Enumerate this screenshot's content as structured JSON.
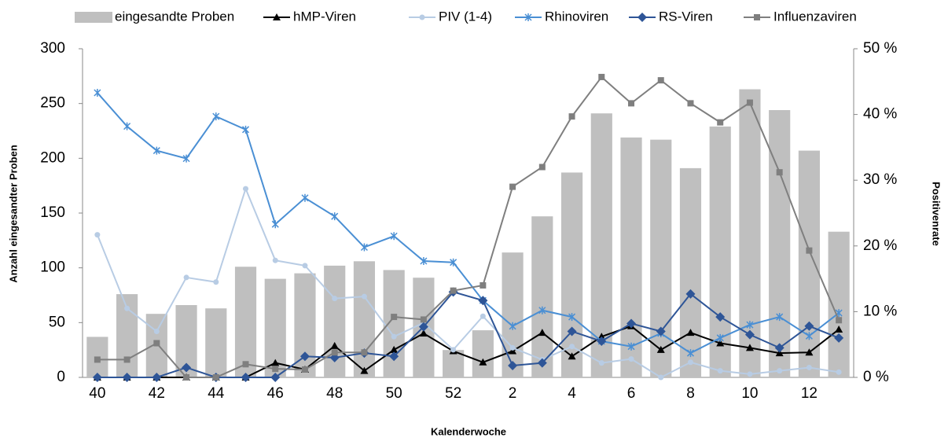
{
  "chart_data": {
    "type": "combo",
    "xlabel": "Kalenderwoche",
    "ylabel": "Anzahl eingesandter Proben",
    "y2label": "Positivenrate",
    "categories": [
      40,
      null,
      42,
      null,
      44,
      null,
      46,
      null,
      48,
      null,
      50,
      null,
      52,
      null,
      2,
      null,
      4,
      null,
      6,
      null,
      8,
      null,
      10,
      null,
      12,
      null
    ],
    "ylim": [
      0,
      300
    ],
    "yticks": [
      0,
      50,
      100,
      150,
      200,
      250,
      300
    ],
    "y2lim": [
      0,
      50
    ],
    "y2ticks": [
      {
        "value": 0,
        "label": "0 %"
      },
      {
        "value": 10,
        "label": "10 %"
      },
      {
        "value": 20,
        "label": "20 %"
      },
      {
        "value": 30,
        "label": "30 %"
      },
      {
        "value": 40,
        "label": "40 %"
      },
      {
        "value": 50,
        "label": "50 %"
      }
    ],
    "series": [
      {
        "name": "eingesandte Proben",
        "type": "bar",
        "color": "#bfbfbf",
        "values": [
          37,
          76,
          58,
          66,
          63,
          101,
          90,
          95,
          102,
          106,
          98,
          91,
          25,
          43,
          114,
          147,
          187,
          241,
          219,
          217,
          191,
          229,
          263,
          244,
          207,
          133
        ]
      },
      {
        "name": "hMP-Viren",
        "type": "line",
        "axis": "y2",
        "marker": "triangle",
        "color": "#000000",
        "values": [
          0,
          0,
          0,
          0,
          0,
          0,
          2.2,
          1.2,
          4.8,
          1.0,
          4.2,
          6.7,
          4.0,
          2.3,
          4.0,
          6.8,
          3.2,
          6.2,
          7.8,
          4.2,
          6.8,
          5.2,
          4.5,
          3.7,
          3.8,
          7.3
        ]
      },
      {
        "name": "PIV (1-4)",
        "type": "line",
        "axis": "y2",
        "marker": "circle",
        "color": "#b8cce4",
        "values": [
          21.7,
          10.5,
          7.0,
          15.2,
          14.5,
          28.7,
          17.8,
          17.0,
          12.0,
          12.3,
          6.2,
          8.3,
          4.2,
          9.3,
          4.5,
          2.7,
          4.7,
          2.2,
          2.8,
          0,
          2.3,
          1.0,
          0.5,
          1.0,
          1.5,
          0.8
        ]
      },
      {
        "name": "Rhinoviren",
        "type": "line",
        "axis": "y2",
        "marker": "star",
        "color": "#4a8fd4",
        "values": [
          43.3,
          38.2,
          34.5,
          33.3,
          39.7,
          37.7,
          23.3,
          27.3,
          24.5,
          19.8,
          21.5,
          17.7,
          17.5,
          11.7,
          7.8,
          10.2,
          9.2,
          5.5,
          4.7,
          6.7,
          3.7,
          6.0,
          8.0,
          9.2,
          6.3,
          9.8
        ]
      },
      {
        "name": "RS-Viren",
        "type": "line",
        "axis": "y2",
        "marker": "diamond",
        "color": "#2e5597",
        "values": [
          0,
          0,
          0,
          1.5,
          0,
          0,
          0,
          3.2,
          3.0,
          3.7,
          3.2,
          7.7,
          13.0,
          11.7,
          1.8,
          2.2,
          7.0,
          5.5,
          8.2,
          7.0,
          12.7,
          9.2,
          6.5,
          4.5,
          7.8,
          6.0
        ]
      },
      {
        "name": "Influenzaviren",
        "type": "line",
        "axis": "y2",
        "marker": "square",
        "color": "#7f7f7f",
        "values": [
          2.7,
          2.7,
          5.2,
          0,
          0,
          2.0,
          1.3,
          1.2,
          3.8,
          3.8,
          9.2,
          8.8,
          13.2,
          14.0,
          29.0,
          32.0,
          39.7,
          45.7,
          41.7,
          45.2,
          41.7,
          38.8,
          41.8,
          31.2,
          19.3,
          8.7
        ]
      }
    ]
  }
}
